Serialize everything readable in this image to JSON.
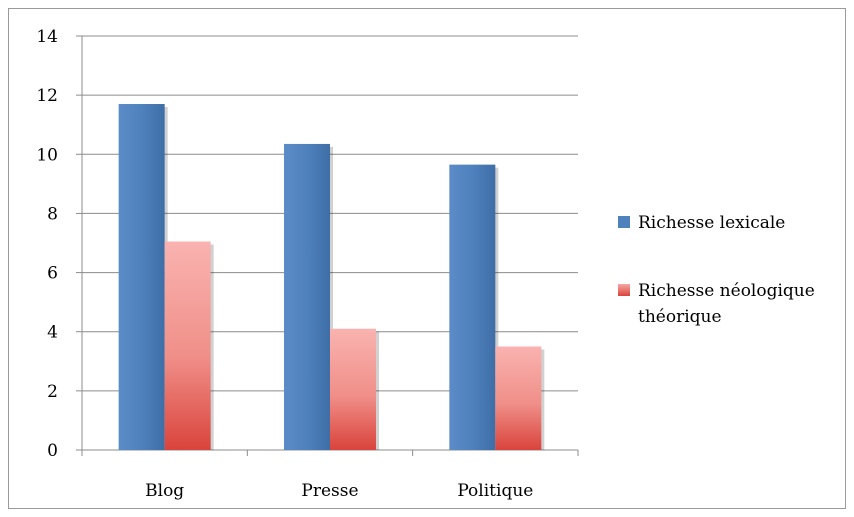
{
  "chart_data": {
    "type": "bar",
    "categories": [
      "Blog",
      "Presse",
      "Politique"
    ],
    "series": [
      {
        "name": "Richesse lexicale",
        "values": [
          11.7,
          10.35,
          9.65
        ],
        "color": "#4f81bd"
      },
      {
        "name": "Richesse néologique théorique",
        "values": [
          7.05,
          4.1,
          3.5
        ],
        "color": "#e0534d"
      }
    ],
    "ylim": [
      0,
      14
    ],
    "yticks": [
      0,
      2,
      4,
      6,
      8,
      10,
      12,
      14
    ],
    "grid": true,
    "legend_position": "right",
    "title": "",
    "xlabel": "",
    "ylabel": ""
  }
}
